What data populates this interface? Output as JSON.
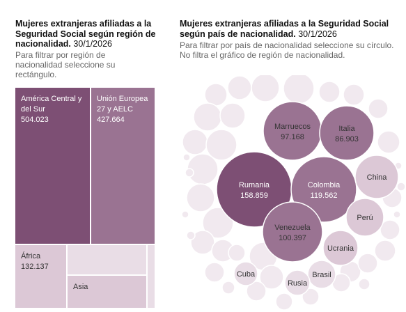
{
  "left_panel": {
    "title": "Mujeres extranjeras afiliadas a la Seguridad Social según región de nacionalidad.",
    "date": "30/1/2026",
    "subtitle": "Para filtrar por región de nacionalidad seleccione su rectángulo."
  },
  "right_panel": {
    "title": "Mujeres extranjeras afiliadas a la Seguridad Social según país de nacionalidad.",
    "date": "30/1/2026",
    "subtitle": "Para filtrar por país de nacionalidad seleccione su círculo. No filtra el gráfico de región de nacionalidad."
  },
  "colors": {
    "dark": "#7d4f74",
    "medium": "#9a7392",
    "light": "#b997b1",
    "pale": "#dcc8d6",
    "paler": "#e9dde6",
    "faint": "#f1e9ef"
  },
  "chart_data": [
    {
      "type": "treemap",
      "title": "Mujeres extranjeras afiliadas a la Seguridad Social según región de nacionalidad.",
      "items": [
        {
          "label": "América Central y del Sur",
          "value": 504023,
          "value_label": "504.023"
        },
        {
          "label": "Unión Europea 27 y AELC",
          "value": 427664,
          "value_label": "427.664"
        },
        {
          "label": "África",
          "value": 132137,
          "value_label": "132.137"
        },
        {
          "label": "Asia",
          "value": null,
          "value_label": ""
        }
      ]
    },
    {
      "type": "bubble",
      "title": "Mujeres extranjeras afiliadas a la Seguridad Social según país de nacionalidad.",
      "items": [
        {
          "label": "Rumania",
          "value": 158859,
          "value_label": "158.859"
        },
        {
          "label": "Colombia",
          "value": 119562,
          "value_label": "119.562"
        },
        {
          "label": "Venezuela",
          "value": 100397,
          "value_label": "100.397"
        },
        {
          "label": "Marruecos",
          "value": 97168,
          "value_label": "97.168"
        },
        {
          "label": "Italia",
          "value": 86903,
          "value_label": "86.903"
        },
        {
          "label": "China",
          "value": null,
          "value_label": ""
        },
        {
          "label": "Perú",
          "value": null,
          "value_label": ""
        },
        {
          "label": "Ucrania",
          "value": null,
          "value_label": ""
        },
        {
          "label": "Brasil",
          "value": null,
          "value_label": ""
        },
        {
          "label": "Rusia",
          "value": null,
          "value_label": ""
        },
        {
          "label": "Cuba",
          "value": null,
          "value_label": ""
        }
      ]
    }
  ]
}
